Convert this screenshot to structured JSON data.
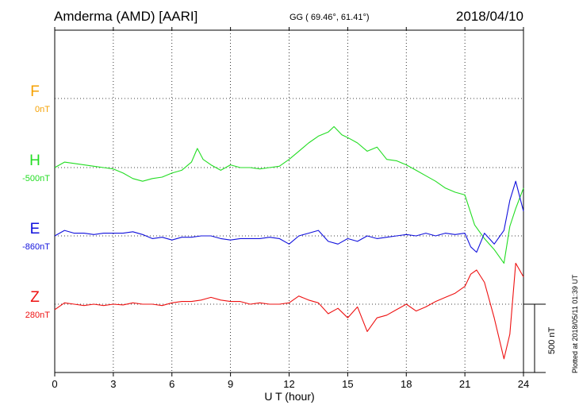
{
  "header": {
    "station": "Amderma (AMD)  [AARI]",
    "coords": "GG ( 69.46°,  61.41°)",
    "date": "2018/04/10"
  },
  "footer": {
    "plotted": "Plotted at 2018/05/11 01:39 UT",
    "scale": "500 nT"
  },
  "chart_data": {
    "type": "line",
    "title": "Amderma (AMD)  [AARI]",
    "xlabel": "U T (hour)",
    "ylabel": "",
    "xlim": [
      0,
      24
    ],
    "xticks": [
      "0",
      "3",
      "6",
      "9",
      "12",
      "15",
      "18",
      "21",
      "24"
    ],
    "grid": true,
    "scale_bar_nT": 500,
    "series": [
      {
        "name": "F",
        "baseline": "0nT",
        "color": "#f5a000",
        "x": [],
        "y": []
      },
      {
        "name": "H",
        "baseline": "-500nT",
        "color": "#22dd22",
        "x": [
          0,
          0.5,
          1,
          1.5,
          2,
          2.5,
          3,
          3.5,
          4,
          4.5,
          5,
          5.5,
          6,
          6.5,
          7,
          7.3,
          7.6,
          8,
          8.5,
          9,
          9.5,
          10,
          10.5,
          11,
          11.5,
          12,
          12.5,
          13,
          13.5,
          14,
          14.3,
          14.7,
          15,
          15.5,
          16,
          16.5,
          17,
          17.5,
          18,
          18.5,
          19,
          19.5,
          20,
          20.5,
          21,
          21.5,
          22,
          22.5,
          23,
          23.3,
          23.6,
          24
        ],
        "y": [
          0,
          40,
          30,
          20,
          10,
          0,
          -10,
          -40,
          -80,
          -100,
          -80,
          -70,
          -40,
          -20,
          40,
          140,
          60,
          20,
          -20,
          20,
          0,
          0,
          -10,
          0,
          10,
          60,
          120,
          180,
          230,
          260,
          300,
          240,
          220,
          180,
          120,
          150,
          60,
          50,
          20,
          -20,
          -60,
          -100,
          -150,
          -180,
          -200,
          -420,
          -520,
          -600,
          -700,
          -430,
          -300,
          -150
        ]
      },
      {
        "name": "E",
        "baseline": "-860nT",
        "color": "#1111dd",
        "x": [
          0,
          0.5,
          1,
          1.5,
          2,
          2.5,
          3,
          3.5,
          4,
          4.5,
          5,
          5.5,
          6,
          6.5,
          7,
          7.5,
          8,
          8.5,
          9,
          9.5,
          10,
          10.5,
          11,
          11.5,
          12,
          12.5,
          13,
          13.5,
          14,
          14.5,
          15,
          15.5,
          16,
          16.5,
          17,
          17.5,
          18,
          18.5,
          19,
          19.5,
          20,
          20.5,
          21,
          21.3,
          21.6,
          22,
          22.5,
          23,
          23.3,
          23.6,
          24
        ],
        "y": [
          0,
          40,
          20,
          20,
          10,
          20,
          20,
          20,
          30,
          10,
          -20,
          -10,
          -30,
          -10,
          -10,
          0,
          0,
          -20,
          -30,
          -20,
          -20,
          -20,
          -10,
          -20,
          -60,
          0,
          20,
          40,
          -40,
          -60,
          -20,
          -40,
          0,
          -20,
          -10,
          0,
          10,
          0,
          20,
          0,
          20,
          10,
          20,
          -80,
          -120,
          20,
          -60,
          40,
          260,
          400,
          180
        ]
      },
      {
        "name": "Z",
        "baseline": "280nT",
        "color": "#ee1111",
        "x": [
          0,
          0.5,
          1,
          1.5,
          2,
          2.5,
          3,
          3.5,
          4,
          4.5,
          5,
          5.5,
          6,
          6.5,
          7,
          7.5,
          8,
          8.5,
          9,
          9.5,
          10,
          10.5,
          11,
          11.5,
          12,
          12.5,
          13,
          13.5,
          14,
          14.5,
          15,
          15.5,
          16,
          16.5,
          17,
          17.5,
          18,
          18.5,
          19,
          19.5,
          20,
          20.5,
          21,
          21.3,
          21.6,
          22,
          22.5,
          23,
          23.3,
          23.6,
          24
        ],
        "y": [
          -40,
          10,
          0,
          -10,
          0,
          -10,
          0,
          -5,
          10,
          0,
          0,
          -10,
          10,
          20,
          20,
          30,
          50,
          30,
          20,
          20,
          0,
          10,
          0,
          0,
          10,
          60,
          30,
          10,
          -70,
          -30,
          -100,
          -20,
          -200,
          -100,
          -80,
          -40,
          0,
          -50,
          -20,
          20,
          50,
          80,
          130,
          220,
          250,
          160,
          -100,
          -400,
          -220,
          300,
          200
        ]
      }
    ]
  }
}
